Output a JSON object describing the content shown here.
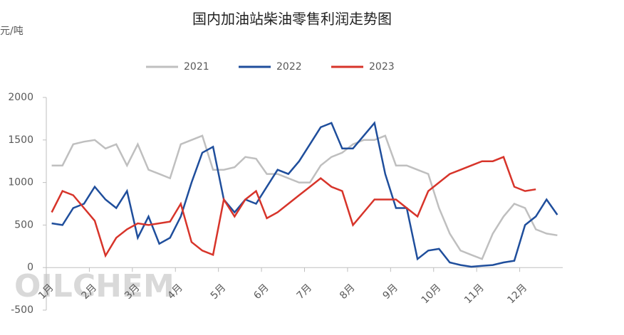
{
  "chart_data": {
    "type": "line",
    "title": "国内加油站柴油零售利润走势图",
    "y_unit": "元/吨",
    "watermark": "OILCHEM",
    "categories": [
      "1月",
      null,
      null,
      null,
      "2月",
      null,
      null,
      null,
      "3月",
      null,
      null,
      null,
      "4月",
      null,
      null,
      null,
      "5月",
      null,
      null,
      null,
      "6月",
      null,
      null,
      null,
      "7月",
      null,
      null,
      null,
      "8月",
      null,
      null,
      null,
      "9月",
      null,
      null,
      null,
      "10月",
      null,
      null,
      null,
      "11月",
      null,
      null,
      null,
      "12月",
      null,
      null,
      null
    ],
    "series": [
      {
        "name": "2021",
        "color": "#bfbfbf",
        "values": [
          1200,
          1200,
          1450,
          1480,
          1500,
          1400,
          1450,
          1200,
          1450,
          1150,
          1100,
          1050,
          1450,
          1500,
          1550,
          1150,
          1150,
          1180,
          1300,
          1280,
          1100,
          1100,
          1050,
          1000,
          1000,
          1200,
          1300,
          1350,
          1450,
          1500,
          1500,
          1550,
          1200,
          1200,
          1150,
          1100,
          700,
          400,
          200,
          150,
          100,
          400,
          600,
          750,
          700,
          450,
          400,
          380
        ]
      },
      {
        "name": "2022",
        "color": "#1f4e9c",
        "values": [
          520,
          500,
          700,
          750,
          950,
          800,
          700,
          900,
          350,
          600,
          280,
          350,
          600,
          1000,
          1350,
          1420,
          800,
          650,
          800,
          750,
          950,
          1150,
          1100,
          1250,
          1450,
          1650,
          1700,
          1400,
          1400,
          1550,
          1700,
          1100,
          700,
          700,
          100,
          200,
          220,
          60,
          30,
          10,
          20,
          30,
          60,
          80,
          500,
          600,
          800,
          620
        ]
      },
      {
        "name": "2023",
        "color": "#d7342a",
        "values": [
          650,
          900,
          850,
          700,
          550,
          140,
          350,
          450,
          520,
          500,
          520,
          540,
          750,
          300,
          200,
          150,
          800,
          600,
          800,
          900,
          580,
          650,
          750,
          850,
          950,
          1050,
          950,
          900,
          500,
          650,
          800,
          800,
          800,
          700,
          600,
          900,
          1000,
          1100,
          1150,
          1200,
          1250,
          1250,
          1300,
          950,
          900,
          920,
          null,
          null
        ]
      }
    ],
    "ylim": [
      -500,
      2000
    ],
    "yticks": [
      -500,
      0,
      500,
      1000,
      1500,
      2000
    ],
    "legend": "top"
  }
}
